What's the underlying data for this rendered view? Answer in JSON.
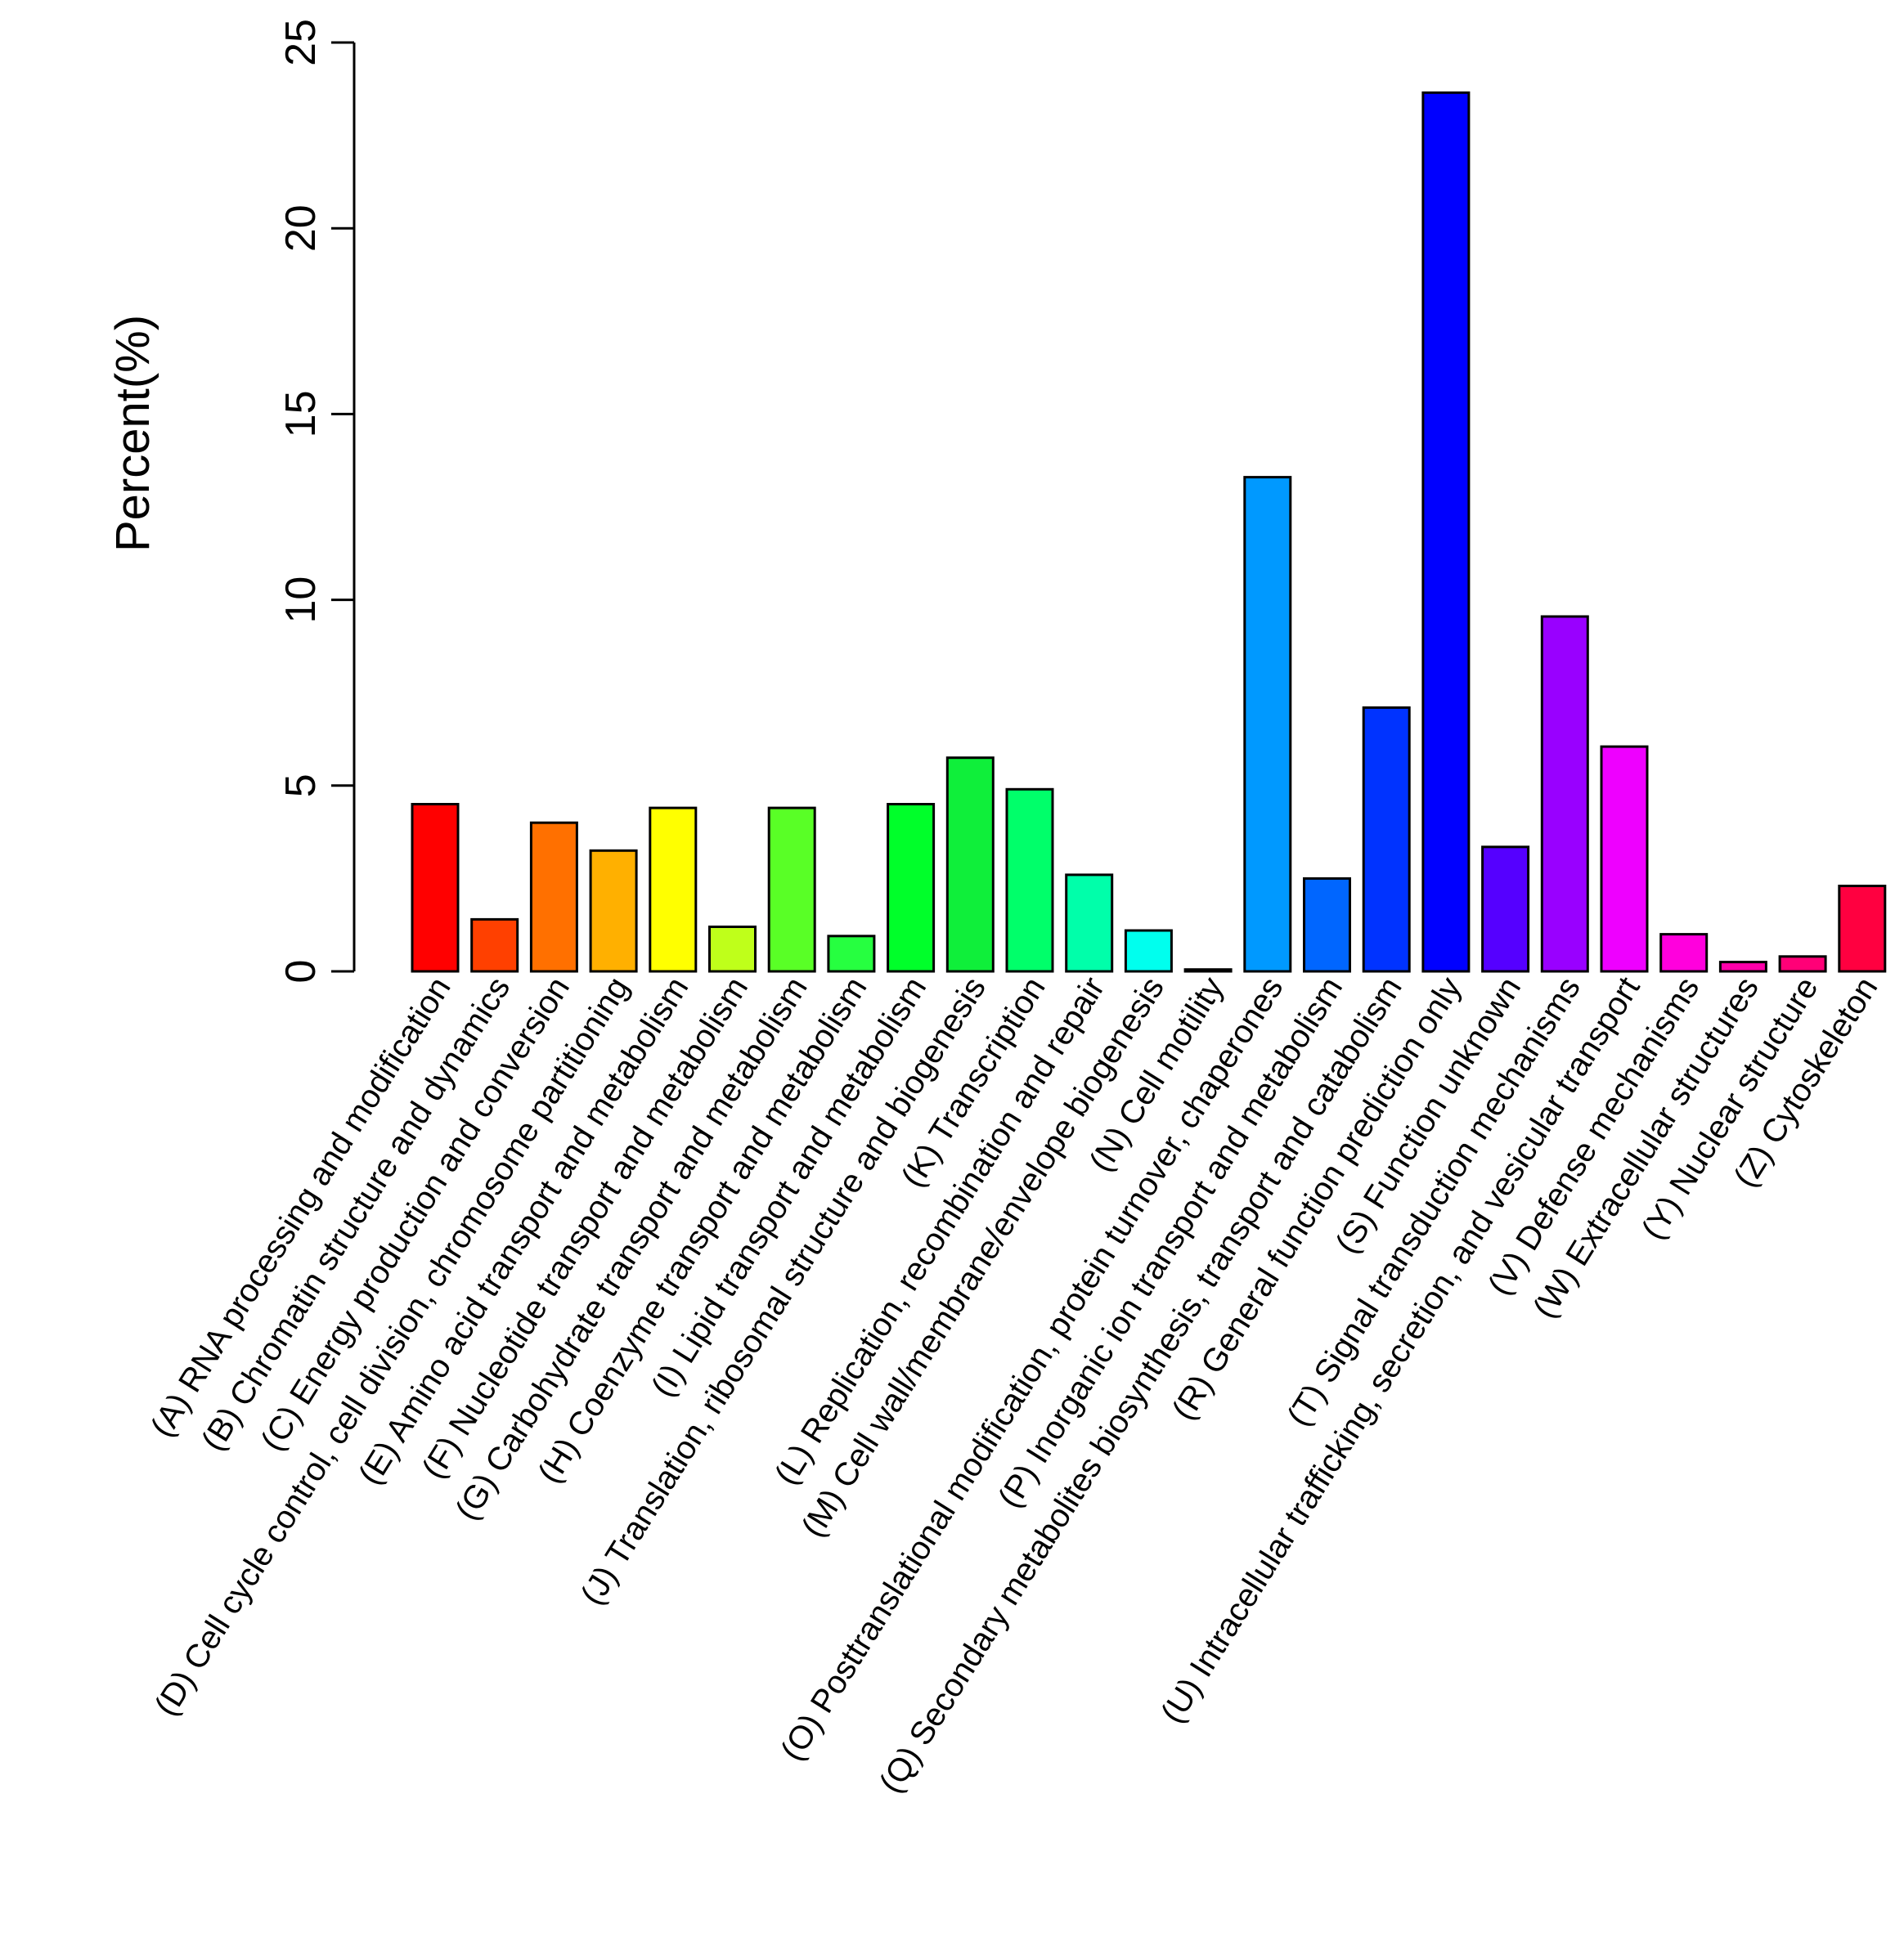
{
  "chart_data": {
    "type": "bar",
    "title": "",
    "xlabel": "",
    "ylabel": "Percent(%)",
    "ylim": [
      0,
      25
    ],
    "yticks": [
      0,
      5,
      10,
      15,
      20,
      25
    ],
    "grid": false,
    "categories": [
      "(A) RNA processing and modification",
      "(B) Chromatin structure and dynamics",
      "(C) Energy production and conversion",
      "(D) Cell cycle control, cell division, chromosome partitioning",
      "(E) Amino acid transport and metabolism",
      "(F) Nucleotide transport and metabolism",
      "(G) Carbohydrate transport and metabolism",
      "(H) Coenzyme transport and metabolism",
      "(I) Lipid transport and metabolism",
      "(J) Translation, ribosomal structure and biogenesis",
      "(K) Transcription",
      "(L) Replication, recombination and repair",
      "(M) Cell wall/membrane/envelope biogenesis",
      "(N) Cell motility",
      "(O) Posttranslational modification, protein turnover, chaperones",
      "(P) Inorganic ion transport and metabolism",
      "(Q) Secondary metabolites biosynthesis, transport and catabolism",
      "(R) General function prediction only",
      "(S) Function unknown",
      "(T) Signal transduction mechanisms",
      "(U) Intracellular trafficking, secretion, and vesicular transport",
      "(V) Defense mechanisms",
      "(W) Extracellular structures",
      "(Y) Nuclear structure",
      "(Z) Cytoskeleton"
    ],
    "values": [
      4.5,
      1.4,
      4.0,
      3.25,
      4.4,
      1.2,
      4.4,
      0.95,
      4.5,
      5.75,
      4.9,
      2.6,
      1.1,
      0.05,
      13.3,
      2.5,
      7.1,
      23.65,
      3.35,
      9.55,
      6.05,
      1.0,
      0.25,
      0.4,
      2.3
    ],
    "colors": [
      "#FF0000",
      "#FF4000",
      "#FF8000",
      "#FFBF00",
      "#FFFF00",
      "#BFFF00",
      "#80FF00",
      "#40FF00",
      "#00FF00",
      "#00FF40",
      "#00FF80",
      "#00FFBF",
      "#00FFFF",
      "#00BFFF",
      "#0080FF",
      "#0040FF",
      "#0000FF",
      "#4000FF",
      "#8000FF",
      "#BF00FF",
      "#FF00FF",
      "#FF00BF",
      "#FF0080",
      "#FF0040"
    ],
    "bar_colors": [
      "#FF0000",
      "#FF4000",
      "#FF7000",
      "#FFB000",
      "#FFFF00",
      "#BFFF1A",
      "#59FF26",
      "#26FF40",
      "#00FF2A",
      "#0FEF3A",
      "#00FF6A",
      "#00FFAA",
      "#00FFEE",
      "#00BFFF",
      "#0099FF",
      "#0066FF",
      "#0033FF",
      "#0000FF",
      "#5500FF",
      "#9900FF",
      "#EE00FF",
      "#FF00DD",
      "#FF00AA",
      "#FF0077",
      "#FF0040"
    ]
  }
}
